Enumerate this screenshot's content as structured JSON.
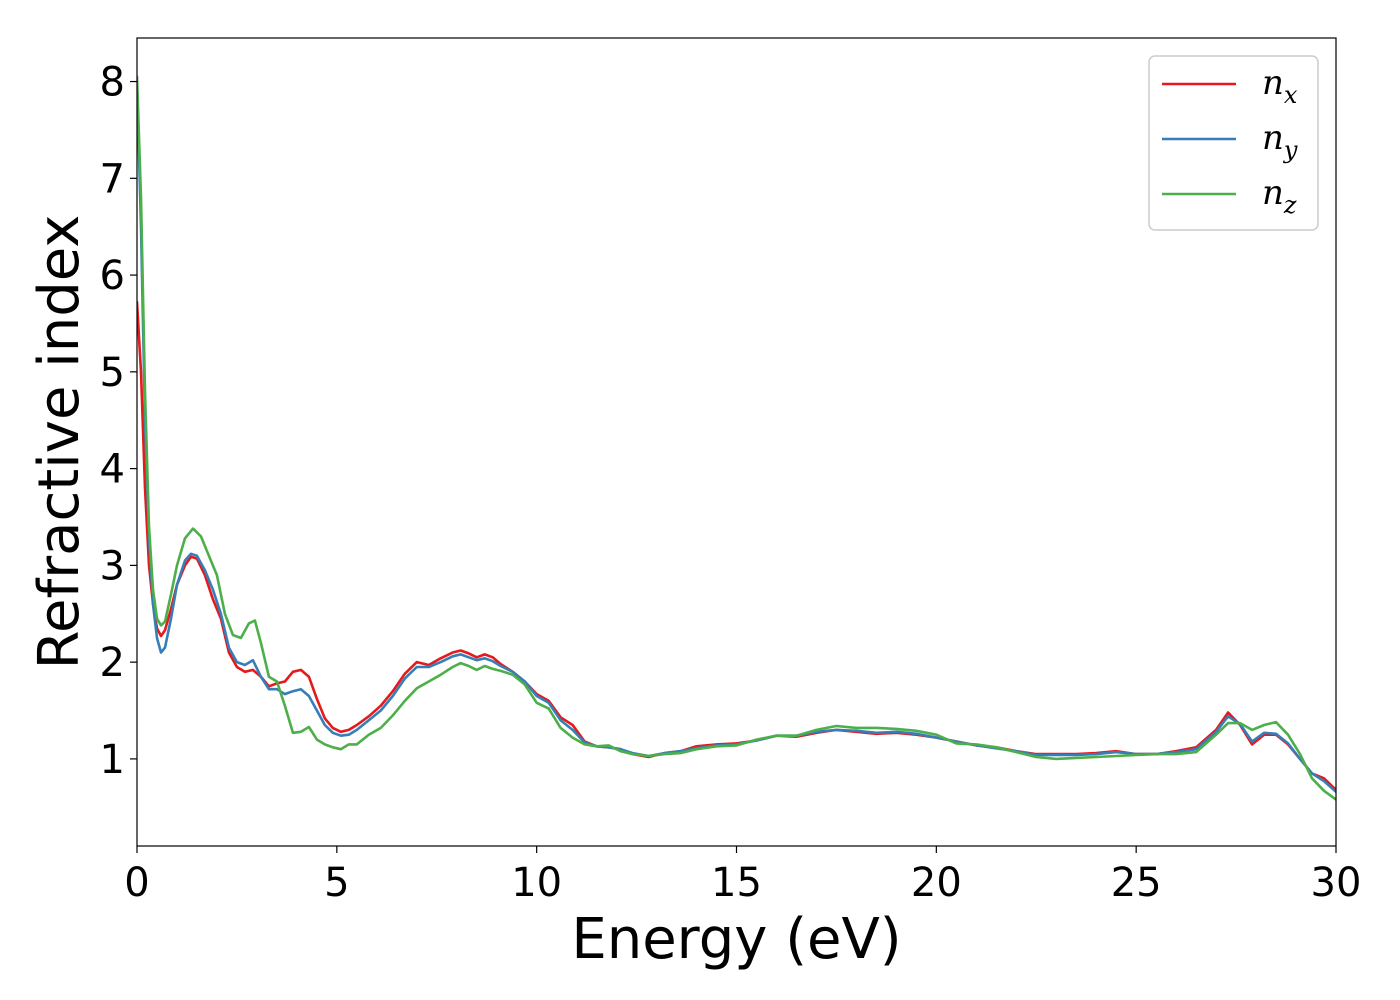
{
  "chart_data": {
    "type": "line",
    "xlabel": "Energy (eV)",
    "ylabel": "Refractive index",
    "xlim": [
      0,
      30
    ],
    "ylim": [
      0.1,
      8.45
    ],
    "xticks": [
      0,
      5,
      10,
      15,
      20,
      25,
      30
    ],
    "yticks": [
      1,
      2,
      3,
      4,
      5,
      6,
      7,
      8
    ],
    "grid": false,
    "legend_position": "top-right",
    "series": [
      {
        "name": "n",
        "subscript": "x",
        "color": "#e41a1c",
        "points": [
          [
            0,
            5.72
          ],
          [
            0.1,
            5.0
          ],
          [
            0.2,
            3.8
          ],
          [
            0.3,
            3.0
          ],
          [
            0.4,
            2.6
          ],
          [
            0.5,
            2.35
          ],
          [
            0.6,
            2.27
          ],
          [
            0.7,
            2.33
          ],
          [
            0.85,
            2.55
          ],
          [
            1.0,
            2.8
          ],
          [
            1.2,
            3.0
          ],
          [
            1.35,
            3.09
          ],
          [
            1.5,
            3.07
          ],
          [
            1.7,
            2.9
          ],
          [
            1.9,
            2.65
          ],
          [
            2.1,
            2.45
          ],
          [
            2.3,
            2.1
          ],
          [
            2.5,
            1.95
          ],
          [
            2.7,
            1.9
          ],
          [
            2.9,
            1.92
          ],
          [
            3.1,
            1.85
          ],
          [
            3.3,
            1.75
          ],
          [
            3.5,
            1.78
          ],
          [
            3.7,
            1.8
          ],
          [
            3.9,
            1.9
          ],
          [
            4.1,
            1.92
          ],
          [
            4.3,
            1.85
          ],
          [
            4.5,
            1.62
          ],
          [
            4.7,
            1.42
          ],
          [
            4.9,
            1.32
          ],
          [
            5.1,
            1.28
          ],
          [
            5.3,
            1.3
          ],
          [
            5.5,
            1.35
          ],
          [
            5.8,
            1.44
          ],
          [
            6.1,
            1.55
          ],
          [
            6.4,
            1.7
          ],
          [
            6.7,
            1.88
          ],
          [
            7.0,
            2.0
          ],
          [
            7.3,
            1.97
          ],
          [
            7.6,
            2.04
          ],
          [
            7.9,
            2.1
          ],
          [
            8.1,
            2.12
          ],
          [
            8.3,
            2.09
          ],
          [
            8.5,
            2.05
          ],
          [
            8.7,
            2.08
          ],
          [
            8.9,
            2.05
          ],
          [
            9.1,
            1.98
          ],
          [
            9.4,
            1.9
          ],
          [
            9.7,
            1.8
          ],
          [
            10.0,
            1.67
          ],
          [
            10.3,
            1.6
          ],
          [
            10.6,
            1.43
          ],
          [
            10.9,
            1.35
          ],
          [
            11.2,
            1.18
          ],
          [
            11.5,
            1.13
          ],
          [
            11.8,
            1.12
          ],
          [
            12.1,
            1.1
          ],
          [
            12.4,
            1.05
          ],
          [
            12.8,
            1.02
          ],
          [
            13.2,
            1.06
          ],
          [
            13.6,
            1.08
          ],
          [
            14.0,
            1.13
          ],
          [
            14.5,
            1.15
          ],
          [
            15.0,
            1.16
          ],
          [
            15.5,
            1.19
          ],
          [
            16.0,
            1.24
          ],
          [
            16.5,
            1.23
          ],
          [
            17.0,
            1.27
          ],
          [
            17.5,
            1.3
          ],
          [
            18.0,
            1.28
          ],
          [
            18.5,
            1.26
          ],
          [
            19.0,
            1.27
          ],
          [
            19.5,
            1.25
          ],
          [
            20.0,
            1.22
          ],
          [
            20.5,
            1.18
          ],
          [
            21.0,
            1.14
          ],
          [
            21.5,
            1.12
          ],
          [
            22.0,
            1.08
          ],
          [
            22.5,
            1.05
          ],
          [
            23.0,
            1.05
          ],
          [
            23.5,
            1.05
          ],
          [
            24.0,
            1.06
          ],
          [
            24.5,
            1.08
          ],
          [
            25.0,
            1.05
          ],
          [
            25.5,
            1.05
          ],
          [
            26.0,
            1.08
          ],
          [
            26.5,
            1.12
          ],
          [
            27.0,
            1.3
          ],
          [
            27.3,
            1.48
          ],
          [
            27.6,
            1.35
          ],
          [
            27.9,
            1.15
          ],
          [
            28.2,
            1.25
          ],
          [
            28.5,
            1.25
          ],
          [
            28.8,
            1.15
          ],
          [
            29.1,
            1.0
          ],
          [
            29.4,
            0.85
          ],
          [
            29.7,
            0.8
          ],
          [
            30.0,
            0.68
          ]
        ]
      },
      {
        "name": "n",
        "subscript": "y",
        "color": "#377eb8",
        "points": [
          [
            0,
            8.0
          ],
          [
            0.1,
            6.5
          ],
          [
            0.2,
            4.5
          ],
          [
            0.3,
            3.3
          ],
          [
            0.4,
            2.6
          ],
          [
            0.5,
            2.25
          ],
          [
            0.6,
            2.1
          ],
          [
            0.7,
            2.15
          ],
          [
            0.85,
            2.45
          ],
          [
            1.0,
            2.8
          ],
          [
            1.2,
            3.05
          ],
          [
            1.35,
            3.12
          ],
          [
            1.5,
            3.1
          ],
          [
            1.7,
            2.95
          ],
          [
            1.9,
            2.75
          ],
          [
            2.1,
            2.5
          ],
          [
            2.3,
            2.15
          ],
          [
            2.5,
            2.0
          ],
          [
            2.7,
            1.97
          ],
          [
            2.9,
            2.02
          ],
          [
            3.1,
            1.85
          ],
          [
            3.3,
            1.72
          ],
          [
            3.5,
            1.72
          ],
          [
            3.7,
            1.67
          ],
          [
            3.9,
            1.7
          ],
          [
            4.1,
            1.72
          ],
          [
            4.3,
            1.65
          ],
          [
            4.5,
            1.5
          ],
          [
            4.7,
            1.35
          ],
          [
            4.9,
            1.27
          ],
          [
            5.1,
            1.24
          ],
          [
            5.3,
            1.25
          ],
          [
            5.5,
            1.3
          ],
          [
            5.8,
            1.4
          ],
          [
            6.1,
            1.5
          ],
          [
            6.4,
            1.65
          ],
          [
            6.7,
            1.83
          ],
          [
            7.0,
            1.95
          ],
          [
            7.3,
            1.95
          ],
          [
            7.6,
            2.0
          ],
          [
            7.9,
            2.06
          ],
          [
            8.1,
            2.08
          ],
          [
            8.3,
            2.05
          ],
          [
            8.5,
            2.02
          ],
          [
            8.7,
            2.04
          ],
          [
            8.9,
            2.01
          ],
          [
            9.1,
            1.96
          ],
          [
            9.4,
            1.9
          ],
          [
            9.7,
            1.8
          ],
          [
            10.0,
            1.65
          ],
          [
            10.3,
            1.58
          ],
          [
            10.6,
            1.4
          ],
          [
            10.9,
            1.3
          ],
          [
            11.2,
            1.17
          ],
          [
            11.5,
            1.13
          ],
          [
            11.8,
            1.12
          ],
          [
            12.1,
            1.1
          ],
          [
            12.4,
            1.06
          ],
          [
            12.8,
            1.03
          ],
          [
            13.2,
            1.06
          ],
          [
            13.6,
            1.08
          ],
          [
            14.0,
            1.11
          ],
          [
            14.5,
            1.14
          ],
          [
            15.0,
            1.15
          ],
          [
            15.5,
            1.19
          ],
          [
            16.0,
            1.24
          ],
          [
            16.5,
            1.24
          ],
          [
            17.0,
            1.28
          ],
          [
            17.5,
            1.3
          ],
          [
            18.0,
            1.29
          ],
          [
            18.5,
            1.27
          ],
          [
            19.0,
            1.28
          ],
          [
            19.5,
            1.26
          ],
          [
            20.0,
            1.22
          ],
          [
            20.5,
            1.18
          ],
          [
            21.0,
            1.14
          ],
          [
            21.5,
            1.11
          ],
          [
            22.0,
            1.08
          ],
          [
            22.5,
            1.04
          ],
          [
            23.0,
            1.04
          ],
          [
            23.5,
            1.04
          ],
          [
            24.0,
            1.05
          ],
          [
            24.5,
            1.07
          ],
          [
            25.0,
            1.05
          ],
          [
            25.5,
            1.05
          ],
          [
            26.0,
            1.07
          ],
          [
            26.5,
            1.1
          ],
          [
            27.0,
            1.28
          ],
          [
            27.3,
            1.44
          ],
          [
            27.6,
            1.36
          ],
          [
            27.9,
            1.18
          ],
          [
            28.2,
            1.27
          ],
          [
            28.5,
            1.26
          ],
          [
            28.8,
            1.16
          ],
          [
            29.1,
            1.0
          ],
          [
            29.4,
            0.85
          ],
          [
            29.7,
            0.77
          ],
          [
            30.0,
            0.66
          ]
        ]
      },
      {
        "name": "n",
        "subscript": "z",
        "color": "#4daf4a",
        "points": [
          [
            0,
            8.05
          ],
          [
            0.1,
            6.8
          ],
          [
            0.2,
            4.8
          ],
          [
            0.3,
            3.4
          ],
          [
            0.4,
            2.75
          ],
          [
            0.5,
            2.45
          ],
          [
            0.6,
            2.38
          ],
          [
            0.7,
            2.42
          ],
          [
            0.85,
            2.7
          ],
          [
            1.0,
            3.0
          ],
          [
            1.2,
            3.28
          ],
          [
            1.4,
            3.38
          ],
          [
            1.6,
            3.3
          ],
          [
            1.8,
            3.1
          ],
          [
            2.0,
            2.9
          ],
          [
            2.2,
            2.5
          ],
          [
            2.4,
            2.28
          ],
          [
            2.6,
            2.25
          ],
          [
            2.8,
            2.4
          ],
          [
            2.95,
            2.43
          ],
          [
            3.1,
            2.2
          ],
          [
            3.3,
            1.85
          ],
          [
            3.5,
            1.8
          ],
          [
            3.7,
            1.55
          ],
          [
            3.9,
            1.27
          ],
          [
            4.1,
            1.28
          ],
          [
            4.3,
            1.33
          ],
          [
            4.5,
            1.2
          ],
          [
            4.7,
            1.15
          ],
          [
            4.9,
            1.12
          ],
          [
            5.1,
            1.1
          ],
          [
            5.3,
            1.15
          ],
          [
            5.5,
            1.15
          ],
          [
            5.8,
            1.25
          ],
          [
            6.1,
            1.32
          ],
          [
            6.4,
            1.45
          ],
          [
            6.7,
            1.6
          ],
          [
            7.0,
            1.73
          ],
          [
            7.3,
            1.8
          ],
          [
            7.6,
            1.87
          ],
          [
            7.9,
            1.95
          ],
          [
            8.1,
            1.99
          ],
          [
            8.3,
            1.96
          ],
          [
            8.5,
            1.92
          ],
          [
            8.7,
            1.96
          ],
          [
            8.9,
            1.93
          ],
          [
            9.1,
            1.91
          ],
          [
            9.4,
            1.87
          ],
          [
            9.7,
            1.77
          ],
          [
            10.0,
            1.58
          ],
          [
            10.3,
            1.52
          ],
          [
            10.6,
            1.32
          ],
          [
            10.9,
            1.22
          ],
          [
            11.2,
            1.15
          ],
          [
            11.5,
            1.13
          ],
          [
            11.8,
            1.14
          ],
          [
            12.1,
            1.08
          ],
          [
            12.4,
            1.05
          ],
          [
            12.8,
            1.03
          ],
          [
            13.2,
            1.05
          ],
          [
            13.6,
            1.06
          ],
          [
            14.0,
            1.1
          ],
          [
            14.5,
            1.13
          ],
          [
            15.0,
            1.14
          ],
          [
            15.5,
            1.2
          ],
          [
            16.0,
            1.24
          ],
          [
            16.5,
            1.24
          ],
          [
            17.0,
            1.3
          ],
          [
            17.5,
            1.34
          ],
          [
            18.0,
            1.32
          ],
          [
            18.5,
            1.32
          ],
          [
            19.0,
            1.31
          ],
          [
            19.5,
            1.29
          ],
          [
            20.0,
            1.25
          ],
          [
            20.5,
            1.16
          ],
          [
            21.0,
            1.15
          ],
          [
            21.5,
            1.12
          ],
          [
            22.0,
            1.07
          ],
          [
            22.5,
            1.02
          ],
          [
            23.0,
            1.0
          ],
          [
            23.5,
            1.01
          ],
          [
            24.0,
            1.02
          ],
          [
            24.5,
            1.03
          ],
          [
            25.0,
            1.04
          ],
          [
            25.5,
            1.05
          ],
          [
            26.0,
            1.05
          ],
          [
            26.5,
            1.07
          ],
          [
            27.0,
            1.25
          ],
          [
            27.3,
            1.37
          ],
          [
            27.6,
            1.37
          ],
          [
            27.9,
            1.3
          ],
          [
            28.2,
            1.35
          ],
          [
            28.5,
            1.38
          ],
          [
            28.8,
            1.25
          ],
          [
            29.1,
            1.05
          ],
          [
            29.4,
            0.8
          ],
          [
            29.7,
            0.67
          ],
          [
            30.0,
            0.58
          ]
        ]
      }
    ]
  }
}
